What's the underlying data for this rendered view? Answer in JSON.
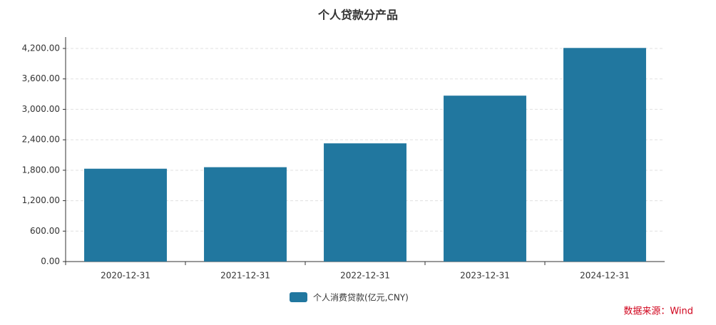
{
  "chart_data": {
    "type": "bar",
    "title": "个人贷款分产品",
    "categories": [
      "2020-12-31",
      "2021-12-31",
      "2022-12-31",
      "2023-12-31",
      "2024-12-31"
    ],
    "series": [
      {
        "name": "个人消费贷款(亿元,CNY)",
        "color": "#21779f",
        "values": [
          1830,
          1860,
          2330,
          3270,
          4210
        ]
      }
    ],
    "ylim": [
      0,
      4200
    ],
    "yticks": [
      {
        "value": 0,
        "label": "0.00"
      },
      {
        "value": 600,
        "label": "600.00"
      },
      {
        "value": 1200,
        "label": "1,200.00"
      },
      {
        "value": 1800,
        "label": "1,800.00"
      },
      {
        "value": 2400,
        "label": "2,400.00"
      },
      {
        "value": 3000,
        "label": "3,000.00"
      },
      {
        "value": 3600,
        "label": "3,600.00"
      },
      {
        "value": 4200,
        "label": "4,200.00"
      }
    ],
    "grid": true,
    "source": "数据来源：Wind"
  }
}
